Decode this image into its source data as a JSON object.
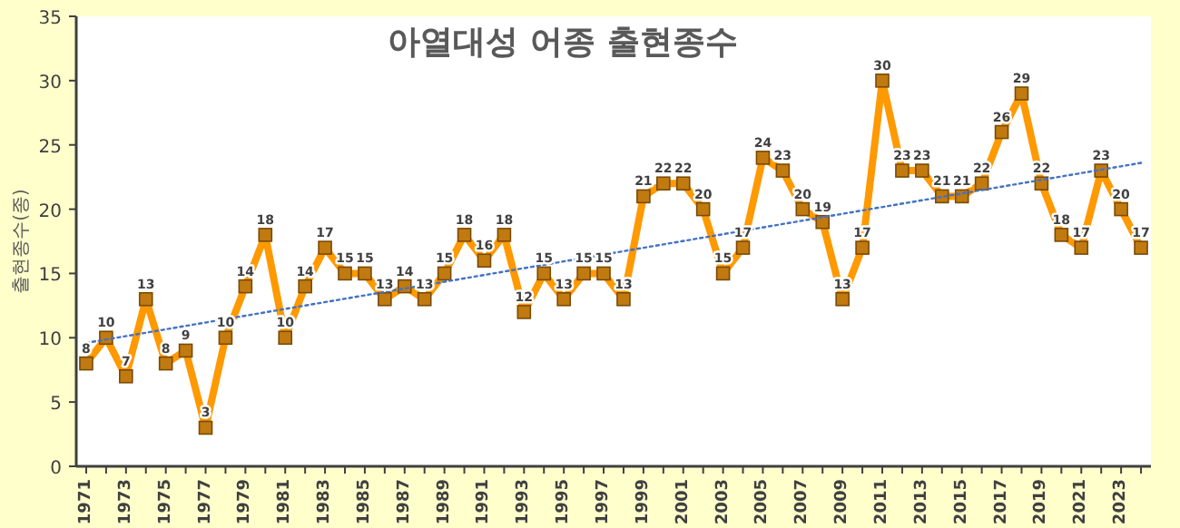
{
  "chart_data": {
    "type": "line",
    "title": "아열대성 어종 출현종수",
    "ylabel": "출현종수(종)",
    "x": [
      1971,
      1972,
      1973,
      1974,
      1975,
      1976,
      1977,
      1978,
      1979,
      1980,
      1981,
      1982,
      1983,
      1984,
      1985,
      1986,
      1987,
      1988,
      1989,
      1990,
      1991,
      1992,
      1993,
      1994,
      1995,
      1996,
      1997,
      1998,
      1999,
      2000,
      2001,
      2002,
      2003,
      2004,
      2005,
      2006,
      2007,
      2008,
      2009,
      2010,
      2011,
      2012,
      2013,
      2014,
      2015,
      2016,
      2017,
      2018,
      2019,
      2020,
      2021,
      2022,
      2023,
      2024
    ],
    "series": [
      {
        "color": "#ff9900",
        "marker": "square",
        "line_style": "solid",
        "data_labels": true,
        "values": [
          8,
          10,
          7,
          13,
          8,
          9,
          3,
          10,
          14,
          18,
          10,
          14,
          17,
          15,
          15,
          13,
          14,
          13,
          15,
          18,
          16,
          18,
          12,
          15,
          13,
          15,
          15,
          13,
          21,
          22,
          22,
          20,
          15,
          17,
          24,
          23,
          20,
          19,
          13,
          17,
          30,
          23,
          23,
          21,
          21,
          22,
          26,
          29,
          22,
          18,
          17,
          23,
          20,
          17
        ]
      },
      {
        "color": "#4472c4",
        "marker": "none",
        "line_style": "dotted",
        "x": [
          1971,
          2024
        ],
        "values": [
          9.6,
          23.6
        ]
      }
    ],
    "xlim": [
      1970.5,
      2024.5
    ],
    "xticks": [
      1971,
      1973,
      1975,
      1977,
      1979,
      1981,
      1983,
      1985,
      1987,
      1989,
      1991,
      1993,
      1995,
      1997,
      1999,
      2001,
      2003,
      2005,
      2007,
      2009,
      2011,
      2013,
      2015,
      2017,
      2019,
      2021,
      2023
    ],
    "ylim": [
      0,
      35
    ],
    "yticks": [
      0,
      5,
      10,
      15,
      20,
      25,
      30,
      35
    ],
    "grid": false
  }
}
